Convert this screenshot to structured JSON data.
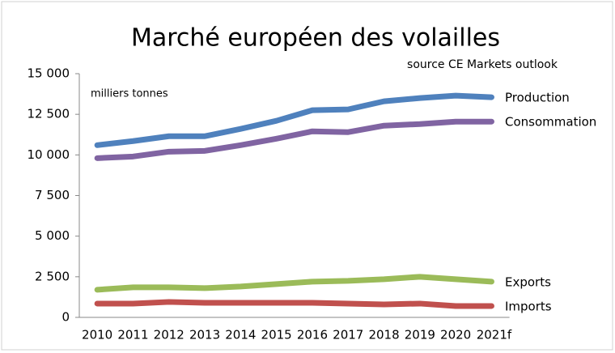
{
  "chart_data": {
    "type": "line",
    "title": "Marché européen des volailles",
    "subtitle": "source CE Markets outlook",
    "y_label": "milliers tonnes",
    "categories": [
      "2010",
      "2011",
      "2012",
      "2013",
      "2014",
      "2015",
      "2016",
      "2017",
      "2018",
      "2019",
      "2020",
      "2021f"
    ],
    "series": [
      {
        "name": "Production",
        "color": "#4f81bd",
        "values": [
          10600,
          10850,
          11150,
          11150,
          11600,
          12100,
          12750,
          12800,
          13300,
          13500,
          13650,
          13550
        ]
      },
      {
        "name": "Consommation",
        "color": "#8064a2",
        "values": [
          9800,
          9900,
          10200,
          10250,
          10600,
          11000,
          11450,
          11400,
          11800,
          11900,
          12050,
          12050
        ]
      },
      {
        "name": "Exports",
        "color": "#9bbb59",
        "values": [
          1700,
          1850,
          1850,
          1800,
          1900,
          2050,
          2200,
          2250,
          2350,
          2500,
          2350,
          2200
        ]
      },
      {
        "name": "Imports",
        "color": "#c0504d",
        "values": [
          850,
          850,
          950,
          900,
          900,
          900,
          900,
          850,
          800,
          850,
          700,
          700
        ]
      }
    ],
    "ylim": [
      0,
      15000
    ],
    "yticks": [
      0,
      {
        "value": 2500,
        "label": "2 500"
      },
      {
        "value": 5000,
        "label": "5 000"
      },
      {
        "value": 7500,
        "label": "7 500"
      },
      {
        "value": 10000,
        "label": "10 000"
      },
      {
        "value": 12500,
        "label": "12 500"
      },
      {
        "value": 15000,
        "label": "15 000"
      }
    ],
    "grid": false
  }
}
